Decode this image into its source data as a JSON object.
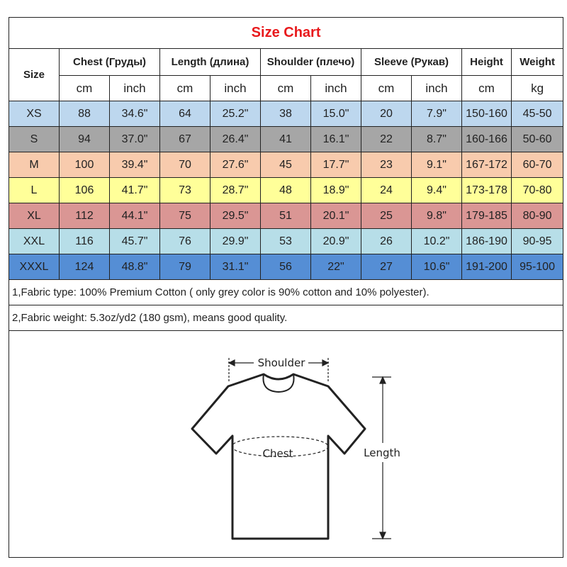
{
  "title": "Size Chart",
  "headers": {
    "size": "Size",
    "groups": [
      "Chest  (Груды)",
      "Length (длина)",
      "Shoulder (плечо)",
      "Sleeve (Рукав)",
      "Height",
      "Weight"
    ],
    "units": [
      "cm",
      "inch",
      "cm",
      "inch",
      "cm",
      "inch",
      "cm",
      "inch",
      "cm",
      "kg"
    ]
  },
  "row_colors": [
    "#bdd7ee",
    "#a6a6a6",
    "#f8cbad",
    "#ffff99",
    "#da9694",
    "#b7dee8",
    "#558ed5"
  ],
  "rows": [
    [
      "XS",
      "88",
      "34.6\"",
      "64",
      "25.2\"",
      "38",
      "15.0\"",
      "20",
      "7.9\"",
      "150-160",
      "45-50"
    ],
    [
      "S",
      "94",
      "37.0\"",
      "67",
      "26.4\"",
      "41",
      "16.1\"",
      "22",
      "8.7\"",
      "160-166",
      "50-60"
    ],
    [
      "M",
      "100",
      "39.4\"",
      "70",
      "27.6\"",
      "45",
      "17.7\"",
      "23",
      "9.1\"",
      "167-172",
      "60-70"
    ],
    [
      "L",
      "106",
      "41.7\"",
      "73",
      "28.7\"",
      "48",
      "18.9\"",
      "24",
      "9.4\"",
      "173-178",
      "70-80"
    ],
    [
      "XL",
      "112",
      "44.1\"",
      "75",
      "29.5\"",
      "51",
      "20.1\"",
      "25",
      "9.8\"",
      "179-185",
      "80-90"
    ],
    [
      "XXL",
      "116",
      "45.7\"",
      "76",
      "29.9\"",
      "53",
      "20.9\"",
      "26",
      "10.2\"",
      "186-190",
      "90-95"
    ],
    [
      "XXXL",
      "124",
      "48.8\"",
      "79",
      "31.1\"",
      "56",
      "22\"",
      "27",
      "10.6\"",
      "191-200",
      "95-100"
    ]
  ],
  "notes": [
    "1,Fabric type: 100% Premium Cotton ( only grey color is 90% cotton and 10% polyester).",
    "2,Fabric weight: 5.3oz/yd2 (180 gsm), means good quality."
  ],
  "diagram": {
    "shoulder": "Shoulder",
    "chest": "Chest",
    "length": "Length"
  }
}
